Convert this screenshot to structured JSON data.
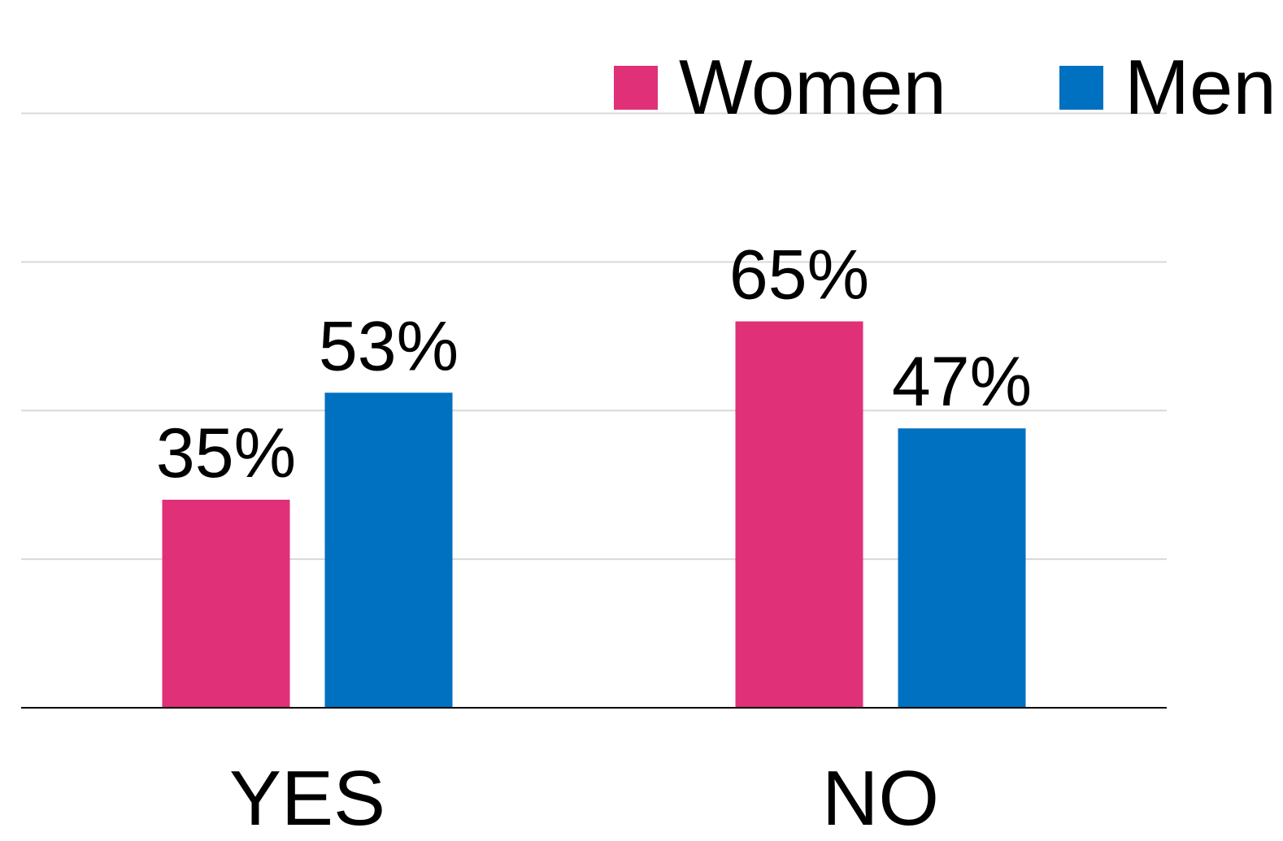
{
  "chart_data": {
    "type": "bar",
    "title": "",
    "xlabel": "",
    "ylabel": "",
    "categories": [
      "YES",
      "NO"
    ],
    "series": [
      {
        "name": "Women",
        "color": "#e03077",
        "values": [
          35,
          65
        ]
      },
      {
        "name": "Men",
        "color": "#0070c0",
        "values": [
          53,
          47
        ]
      }
    ],
    "data_labels": [
      [
        "35%",
        "65%"
      ],
      [
        "53%",
        "47%"
      ]
    ],
    "ylim": [
      0,
      100
    ],
    "y_gridlines": [
      25,
      50,
      75,
      100
    ],
    "y_tick_labels_shown": false,
    "grid": true,
    "gridline_color": "#d9d9d9",
    "axis_color": "#000000",
    "legend": {
      "position": "top-right"
    }
  }
}
